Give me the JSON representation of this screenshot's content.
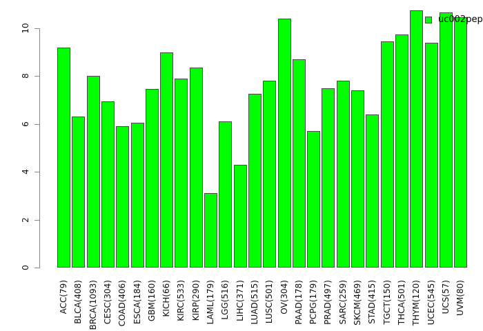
{
  "chart_data": {
    "type": "bar",
    "title": "",
    "xlabel": "",
    "ylabel": "",
    "categories": [
      "ACC(79)",
      "BLCA(408)",
      "BRCA(1093)",
      "CESC(304)",
      "COAD(406)",
      "ESCA(184)",
      "GBM(160)",
      "KICH(66)",
      "KIRC(533)",
      "KIRP(290)",
      "LAML(179)",
      "LGG(516)",
      "LIHC(371)",
      "LUAD(515)",
      "LUSC(501)",
      "OV(304)",
      "PAAD(178)",
      "PCPG(179)",
      "PRAD(497)",
      "SARC(259)",
      "SKCM(469)",
      "STAD(415)",
      "TGCT(150)",
      "THCA(501)",
      "THYM(120)",
      "UCEC(545)",
      "UCS(57)",
      "UVM(80)"
    ],
    "values": [
      9.2,
      6.3,
      8.0,
      6.95,
      5.9,
      6.05,
      7.45,
      9.0,
      7.9,
      8.35,
      3.1,
      6.1,
      4.3,
      7.25,
      7.8,
      10.4,
      8.7,
      5.7,
      7.5,
      7.8,
      7.4,
      6.4,
      9.45,
      9.75,
      10.75,
      9.4,
      10.65,
      10.45
    ],
    "y_ticks": [
      0,
      2,
      4,
      6,
      8,
      10
    ],
    "ylim": [
      0,
      11
    ],
    "grid": "off",
    "legend_position": "top-right",
    "bar_fill_color": "#00FF00",
    "bar_border_color": "#4a4a4a",
    "axis_color": "#888888",
    "legend": {
      "label": "uc002pep",
      "swatch_color": "#00FF00"
    }
  }
}
